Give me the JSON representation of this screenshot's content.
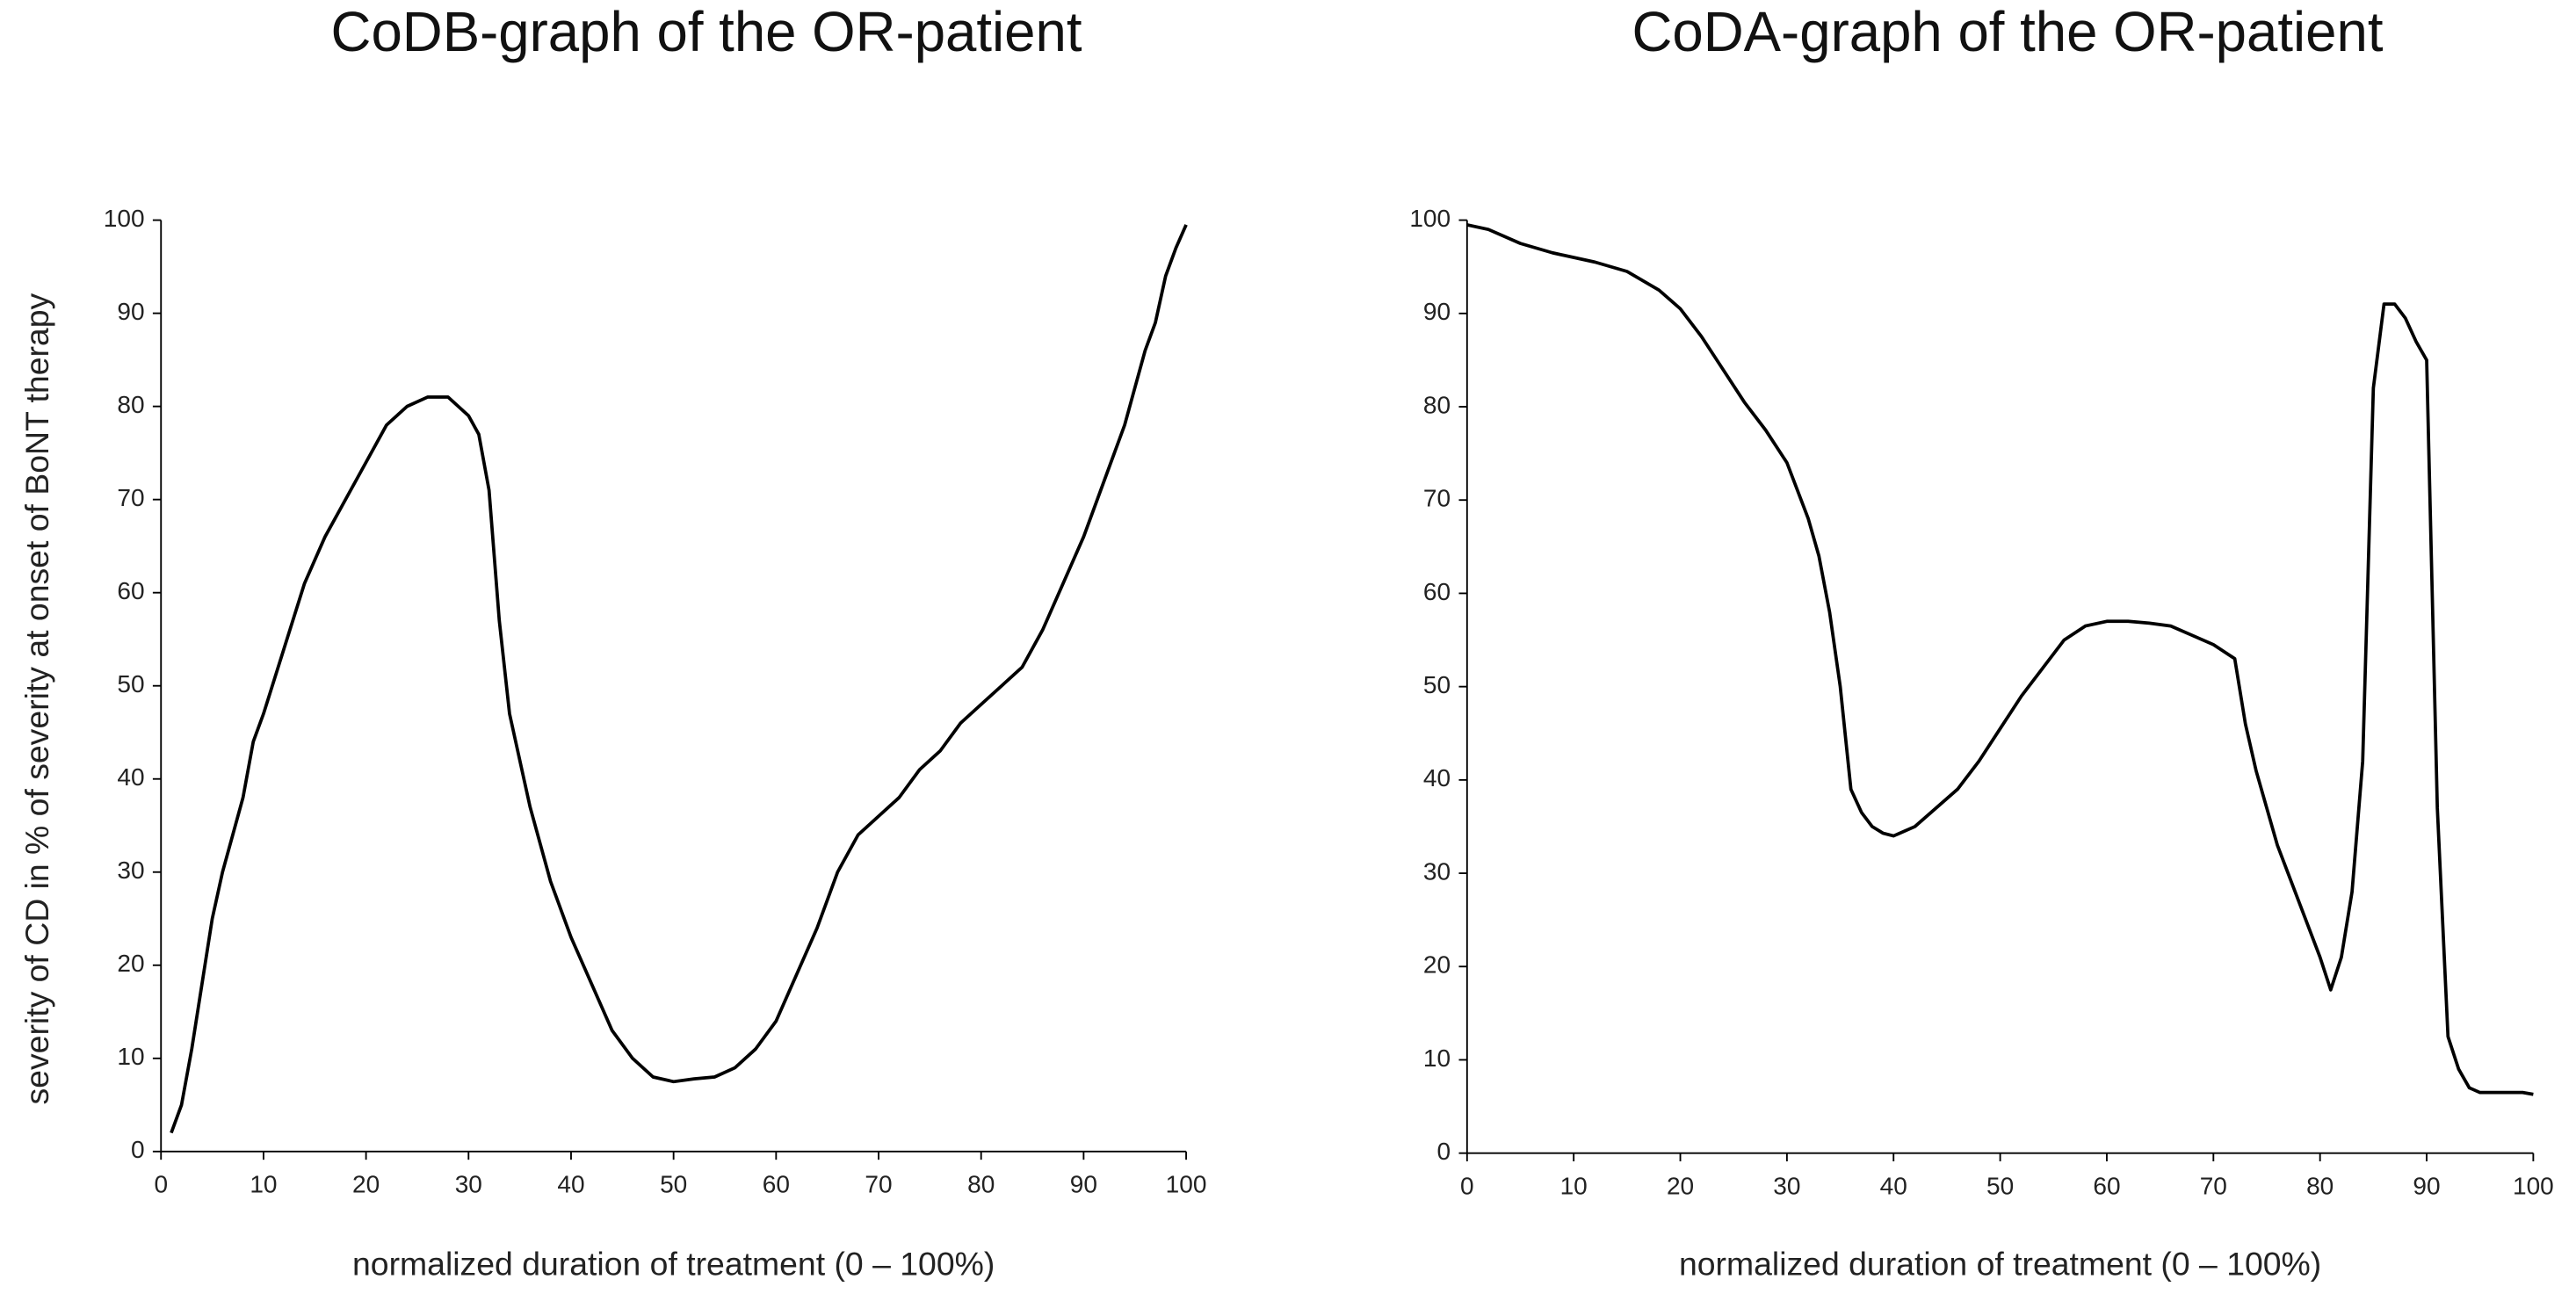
{
  "chart_data": [
    {
      "type": "line",
      "title": "CoDB-graph of the OR-patient",
      "xlabel": "normalized duration of treatment (0  – 100%)",
      "ylabel": "severity of CD in % of severity at onset of BoNT therapy",
      "xlim": [
        0,
        100
      ],
      "ylim": [
        0,
        100
      ],
      "xticks": [
        0,
        10,
        20,
        30,
        40,
        50,
        60,
        70,
        80,
        90,
        100
      ],
      "yticks": [
        0,
        10,
        20,
        30,
        40,
        50,
        60,
        70,
        80,
        90,
        100
      ],
      "x": [
        1,
        2,
        3,
        4,
        5,
        6,
        7,
        8,
        9,
        10,
        12,
        14,
        16,
        18,
        20,
        22,
        24,
        26,
        28,
        30,
        31,
        32,
        33,
        34,
        36,
        38,
        40,
        42,
        44,
        46,
        48,
        50,
        52,
        54,
        56,
        58,
        60,
        62,
        64,
        66,
        68,
        70,
        72,
        74,
        76,
        78,
        80,
        82,
        84,
        86,
        88,
        90,
        92,
        94,
        95,
        96,
        97,
        98,
        99,
        100
      ],
      "series": [
        {
          "color": "#000000",
          "values": [
            2,
            5,
            11,
            18,
            25,
            30,
            34,
            38,
            44,
            47,
            54,
            61,
            66,
            70,
            74,
            78,
            80,
            81,
            81,
            79,
            77,
            71,
            57,
            47,
            37,
            29,
            23,
            18,
            13,
            10,
            8,
            7.5,
            7.8,
            8,
            9,
            11,
            14,
            19,
            24,
            30,
            34,
            36,
            38,
            41,
            43,
            46,
            48,
            50,
            52,
            56,
            61,
            66,
            72,
            78,
            82,
            86,
            89,
            94,
            97,
            99.5
          ]
        }
      ]
    },
    {
      "type": "line",
      "title": "CoDA-graph of the OR-patient",
      "xlabel": "normalized duration of treatment (0  – 100%)",
      "xlim": [
        0,
        100
      ],
      "ylim": [
        0,
        100
      ],
      "xticks": [
        0,
        10,
        20,
        30,
        40,
        50,
        60,
        70,
        80,
        90,
        100
      ],
      "yticks": [
        0,
        10,
        20,
        30,
        40,
        50,
        60,
        70,
        80,
        90,
        100
      ],
      "x": [
        0,
        2,
        5,
        8,
        12,
        15,
        18,
        20,
        22,
        24,
        26,
        28,
        30,
        32,
        33,
        34,
        35,
        36,
        37,
        38,
        39,
        40,
        42,
        44,
        46,
        48,
        50,
        52,
        54,
        56,
        58,
        60,
        62,
        64,
        66,
        68,
        70,
        72,
        73,
        74,
        75,
        76,
        77,
        78,
        79,
        80,
        81,
        82,
        83,
        84,
        85,
        86,
        87,
        88,
        89,
        90,
        91,
        92,
        93,
        94,
        95,
        97,
        99,
        100
      ],
      "series": [
        {
          "color": "#000000",
          "values": [
            99.5,
            99,
            97.5,
            96.5,
            95.5,
            94.5,
            92.5,
            90.5,
            87.5,
            84,
            80.5,
            77.5,
            74,
            68,
            64,
            58,
            50,
            39,
            36.5,
            35,
            34.3,
            34,
            35,
            37,
            39,
            42,
            45.5,
            49,
            52,
            55,
            56.5,
            57,
            57,
            56.8,
            56.5,
            55.5,
            54.5,
            53,
            46,
            41,
            37,
            33,
            30,
            27,
            24,
            21,
            17.5,
            21,
            28,
            42,
            82,
            91,
            91,
            89.5,
            87,
            85,
            37,
            12.5,
            9,
            7,
            6.5,
            6.5,
            6.5,
            6.3
          ]
        }
      ]
    }
  ]
}
